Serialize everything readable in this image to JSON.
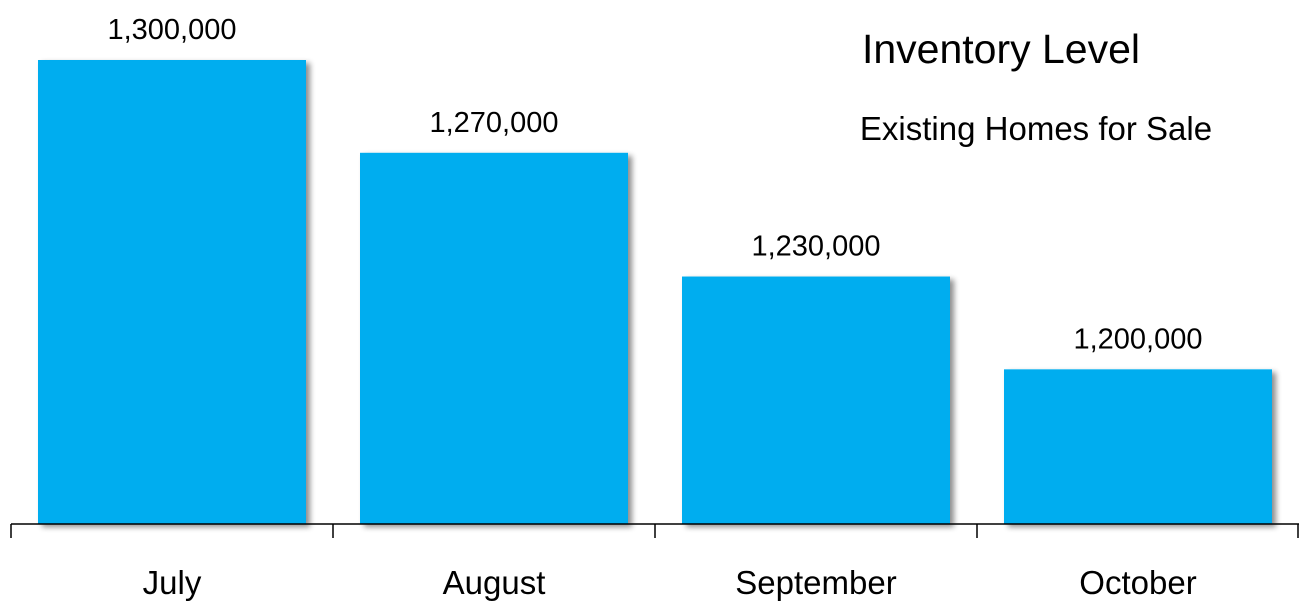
{
  "chart_data": {
    "type": "bar",
    "title": "Inventory Level",
    "subtitle": "Existing Homes for Sale",
    "categories": [
      "July",
      "August",
      "September",
      "October"
    ],
    "values": [
      1300000,
      1270000,
      1230000,
      1200000
    ],
    "data_labels": [
      "1,300,000",
      "1,270,000",
      "1,230,000",
      "1,200,000"
    ],
    "xlabel": "",
    "ylabel": "",
    "ylim": [
      1150000,
      1300000
    ],
    "grid": false,
    "legend": "none",
    "bar_color": "#00ADEF",
    "axis_color": "#000000"
  }
}
